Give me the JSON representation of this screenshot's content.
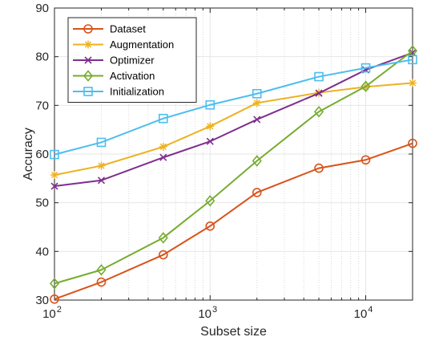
{
  "chart_data": {
    "type": "line",
    "title": "",
    "xlabel": "Subset size",
    "ylabel": "Accuracy",
    "xscale": "log",
    "xlim": [
      100,
      20000
    ],
    "ylim": [
      30,
      90
    ],
    "yticks": [
      30,
      40,
      50,
      60,
      70,
      80,
      90
    ],
    "xticks": [
      {
        "value": 100,
        "base": "10",
        "exp": "2"
      },
      {
        "value": 1000,
        "base": "10",
        "exp": "3"
      },
      {
        "value": 10000,
        "base": "10",
        "exp": "4"
      }
    ],
    "grid": true,
    "legend_position": "top-left",
    "x": [
      100,
      200,
      500,
      1000,
      2000,
      5000,
      10000,
      20000
    ],
    "series": [
      {
        "name": "Dataset",
        "color": "#D95319",
        "marker": "circle",
        "values": [
          30.2,
          33.7,
          39.3,
          45.2,
          52.1,
          57.1,
          58.8,
          62.2
        ]
      },
      {
        "name": "Augmentation",
        "color": "#EDB120",
        "marker": "asterisk",
        "values": [
          55.7,
          57.6,
          61.5,
          65.7,
          70.5,
          72.6,
          73.8,
          74.6
        ]
      },
      {
        "name": "Optimizer",
        "color": "#7E2F8E",
        "marker": "x",
        "values": [
          53.4,
          54.6,
          59.3,
          62.6,
          67.1,
          72.5,
          77.3,
          80.8
        ]
      },
      {
        "name": "Activation",
        "color": "#77AC30",
        "marker": "diamond",
        "values": [
          33.4,
          36.2,
          42.8,
          50.4,
          58.6,
          68.7,
          73.9,
          81.2
        ]
      },
      {
        "name": "Initialization",
        "color": "#4DBEEE",
        "marker": "square",
        "values": [
          59.9,
          62.4,
          67.3,
          70.1,
          72.4,
          75.9,
          77.7,
          79.4
        ]
      }
    ]
  }
}
